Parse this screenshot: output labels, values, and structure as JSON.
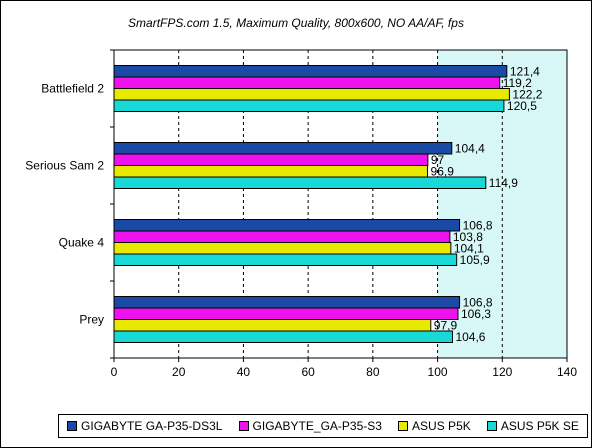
{
  "chart_data": {
    "type": "bar",
    "orientation": "horizontal",
    "title": "SmartFPS.com 1.5, Maximum Quality, 800x600, NO AA/AF, fps",
    "categories": [
      "Battlefield 2",
      "Serious Sam 2",
      "Quake 4",
      "Prey"
    ],
    "series": [
      {
        "name": "GIGABYTE GA-P35-DS3L",
        "color": "#1a4aa6",
        "values": [
          121.4,
          104.4,
          106.8,
          106.8
        ],
        "labels": [
          "121,4",
          "104,4",
          "106,8",
          "106,8"
        ]
      },
      {
        "name": "GIGABYTE_GA-P35-S3",
        "color": "#ee12ee",
        "values": [
          119.2,
          97,
          103.8,
          106.3
        ],
        "labels": [
          "119,2",
          "97",
          "103,8",
          "106,3"
        ]
      },
      {
        "name": "ASUS P5K",
        "color": "#e8e800",
        "values": [
          122.2,
          96.9,
          104.1,
          97.9
        ],
        "labels": [
          "122,2",
          "96,9",
          "104,1",
          "97,9"
        ]
      },
      {
        "name": "ASUS P5K SE",
        "color": "#18d8d8",
        "values": [
          120.5,
          114.9,
          105.9,
          104.6
        ],
        "labels": [
          "120,5",
          "114,9",
          "105,9",
          "104,6"
        ]
      }
    ],
    "xlim": [
      0,
      140
    ],
    "xticks": [
      0,
      20,
      40,
      60,
      80,
      100,
      120,
      140
    ],
    "grid": true,
    "legend_position": "bottom",
    "plot_background": "#d8f8f8"
  }
}
